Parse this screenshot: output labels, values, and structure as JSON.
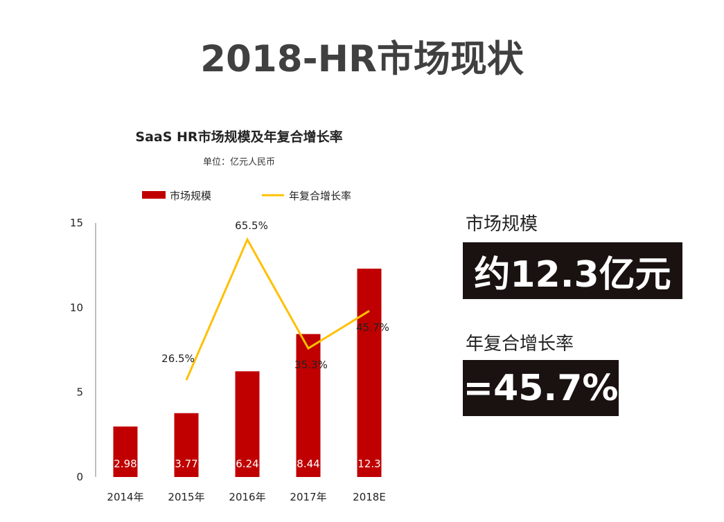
{
  "page": {
    "title": "2018-HR市场现状"
  },
  "chart_data": {
    "type": "bar",
    "title": "SaaS HR市场规模及年复合增长率",
    "subtitle": "单位：亿元人民币",
    "categories": [
      "2014年",
      "2015年",
      "2016年",
      "2017年",
      "2018E"
    ],
    "ylim": [
      0,
      15
    ],
    "yticks": [
      "0",
      "5",
      "10",
      "15"
    ],
    "legend_position": "top",
    "bar_color": "#c00000",
    "line_color": "#ffc000",
    "series": [
      {
        "name": "市场规模",
        "type": "bar",
        "values": [
          2.98,
          3.77,
          6.24,
          8.44,
          12.3
        ],
        "labels": [
          "2.98",
          "3.77",
          "6.24",
          "8.44",
          "12.3"
        ]
      },
      {
        "name": "年复合增长率",
        "type": "line",
        "values": [
          null,
          26.5,
          65.5,
          35.3,
          45.7
        ],
        "labels": [
          "",
          "26.5%",
          "65.5%",
          "35.3%",
          "45.7%"
        ]
      }
    ]
  },
  "side": {
    "size_label": "市场规模",
    "size_value": "约12.3亿元",
    "rate_label": "年复合增长率",
    "rate_value": "=45.7%"
  }
}
